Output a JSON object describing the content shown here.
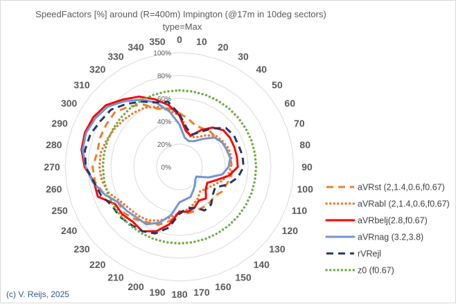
{
  "chart_data": {
    "type": "radar",
    "title": "SpeedFactors [%] around (R=400m) Impington (@17m in 10deg sectors)",
    "subtitle": "type=Max",
    "categories": [
      "0",
      "10",
      "20",
      "30",
      "40",
      "50",
      "60",
      "70",
      "80",
      "90",
      "100",
      "110",
      "120",
      "130",
      "140",
      "150",
      "160",
      "170",
      "180",
      "190",
      "200",
      "210",
      "220",
      "230",
      "240",
      "250",
      "260",
      "270",
      "280",
      "290",
      "300",
      "310",
      "320",
      "330",
      "340",
      "350"
    ],
    "radial_ticks": [
      "0%",
      "20%",
      "40%",
      "60%",
      "80%",
      "100%"
    ],
    "rlim": [
      0,
      100
    ],
    "grid": true,
    "legend_position": "right",
    "series": [
      {
        "name": "aVRst (2,1.4,0.6,f0.67)",
        "color": "#ED7D31",
        "style": "dash",
        "values": [
          47,
          43,
          39,
          39,
          41,
          41,
          43,
          44,
          45,
          46,
          46,
          44,
          43,
          40,
          41,
          41,
          41,
          41,
          40,
          48,
          54,
          56,
          60,
          63,
          62,
          70,
          75,
          76,
          73,
          74,
          74,
          74,
          69,
          63,
          54,
          52
        ]
      },
      {
        "name": "aVRabl (2,1.4,0.6,f0.67)",
        "color": "#ED7D31",
        "style": "dot",
        "values": [
          45,
          35,
          28,
          30,
          36,
          42,
          44,
          46,
          46,
          45,
          43,
          38,
          33,
          30,
          28,
          32,
          35,
          38,
          40,
          45,
          50,
          54,
          56,
          57,
          60,
          66,
          69,
          70,
          70,
          68,
          66,
          64,
          62,
          60,
          56,
          50
        ]
      },
      {
        "name": "aVRbelj(2.8,f0.67)",
        "color": "#FF0000",
        "style": "solid",
        "values": [
          45,
          32,
          29,
          37,
          45,
          50,
          51,
          51,
          51,
          51,
          44,
          34,
          28,
          30,
          36,
          34,
          38,
          40,
          39,
          51,
          60,
          65,
          63,
          65,
          65,
          76,
          76,
          83,
          87,
          88,
          87,
          84,
          77,
          71,
          63,
          55
        ]
      },
      {
        "name": "aVRnag (3.2,3.8)",
        "color": "#7295D2",
        "style": "solid",
        "values": [
          37,
          26,
          24,
          26,
          32,
          40,
          43,
          44,
          45,
          43,
          38,
          27,
          17,
          18,
          21,
          24,
          28,
          29,
          31,
          43,
          52,
          58,
          58,
          60,
          62,
          70,
          77,
          82,
          86,
          87,
          85,
          82,
          75,
          68,
          60,
          49
        ]
      },
      {
        "name": "rVRejl",
        "color": "#203864",
        "style": "dash",
        "values": [
          46,
          35,
          30,
          35,
          44,
          53,
          55,
          55,
          56,
          56,
          52,
          45,
          36,
          38,
          43,
          44,
          38,
          37,
          41,
          54,
          62,
          65,
          66,
          68,
          68,
          73,
          76,
          82,
          84,
          83,
          80,
          78,
          72,
          66,
          60,
          58
        ]
      },
      {
        "name": "z0 (f0.67)",
        "color": "#70AD47",
        "style": "dot",
        "values": [
          67,
          67,
          67,
          67,
          67,
          67,
          67,
          67,
          67,
          67,
          67,
          67,
          67,
          67,
          67,
          67,
          67,
          67,
          67,
          67,
          67,
          67,
          67,
          67,
          67,
          67,
          67,
          67,
          67,
          67,
          67,
          67,
          67,
          67,
          67,
          67
        ]
      }
    ]
  },
  "copyright": "(c) V. Reijs, 2025"
}
